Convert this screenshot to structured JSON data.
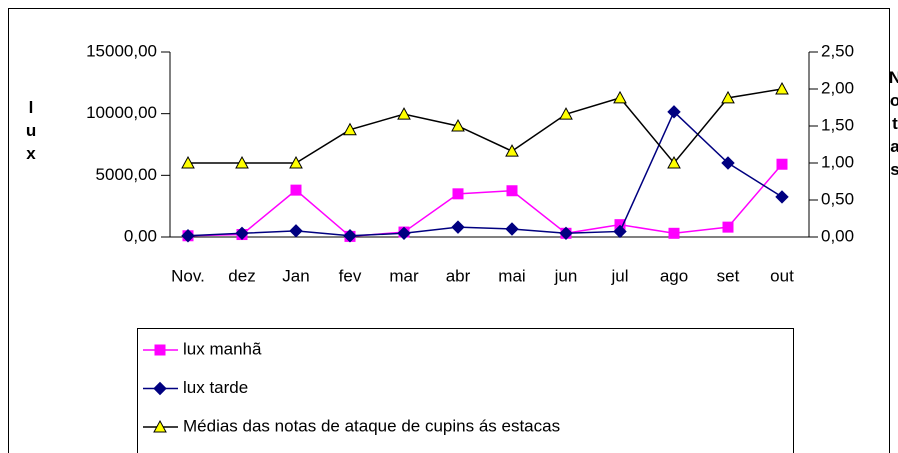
{
  "chart_data": {
    "type": "line",
    "y_label": "lux",
    "y2_label": "Notas",
    "categories": [
      "Nov.",
      "dez",
      "Jan",
      "fev",
      "mar",
      "abr",
      "mai",
      "jun",
      "jul",
      "ago",
      "set",
      "out"
    ],
    "series": [
      {
        "name": "lux manhã",
        "color": "#ff00ff",
        "marker": "square",
        "values": [
          100,
          200,
          3800,
          50,
          400,
          3500,
          3750,
          300,
          1000,
          300,
          800,
          5900
        ]
      },
      {
        "name": "lux tarde",
        "color": "#000080",
        "marker": "diamond",
        "values": [
          100,
          300,
          500,
          100,
          300,
          800,
          650,
          300,
          450,
          10150,
          6000,
          3250
        ]
      },
      {
        "name": "Médias das notas de ataque de cupins ás estacas",
        "color": "#000000",
        "marker": "triangle",
        "marker_color": "#ffff00",
        "axis": "y2",
        "values": [
          1.0,
          1.0,
          1.0,
          1.45,
          1.66,
          1.5,
          1.16,
          1.66,
          1.88,
          1.0,
          1.88,
          2.0
        ]
      }
    ],
    "ylim": [
      0,
      15000
    ],
    "yticks": [
      {
        "value": 0,
        "label": "0,00"
      },
      {
        "value": 5000,
        "label": "5000,00"
      },
      {
        "value": 10000,
        "label": "10000,00"
      },
      {
        "value": 15000,
        "label": "15000,00"
      }
    ],
    "y2lim": [
      0,
      2.5
    ],
    "y2ticks": [
      {
        "value": 0,
        "label": "0,00"
      },
      {
        "value": 0.5,
        "label": "0,50"
      },
      {
        "value": 1,
        "label": "1,00"
      },
      {
        "value": 1.5,
        "label": "1,50"
      },
      {
        "value": 2,
        "label": "2,00"
      },
      {
        "value": 2.5,
        "label": "2,50"
      }
    ],
    "grid": false,
    "legend": "bottom"
  }
}
